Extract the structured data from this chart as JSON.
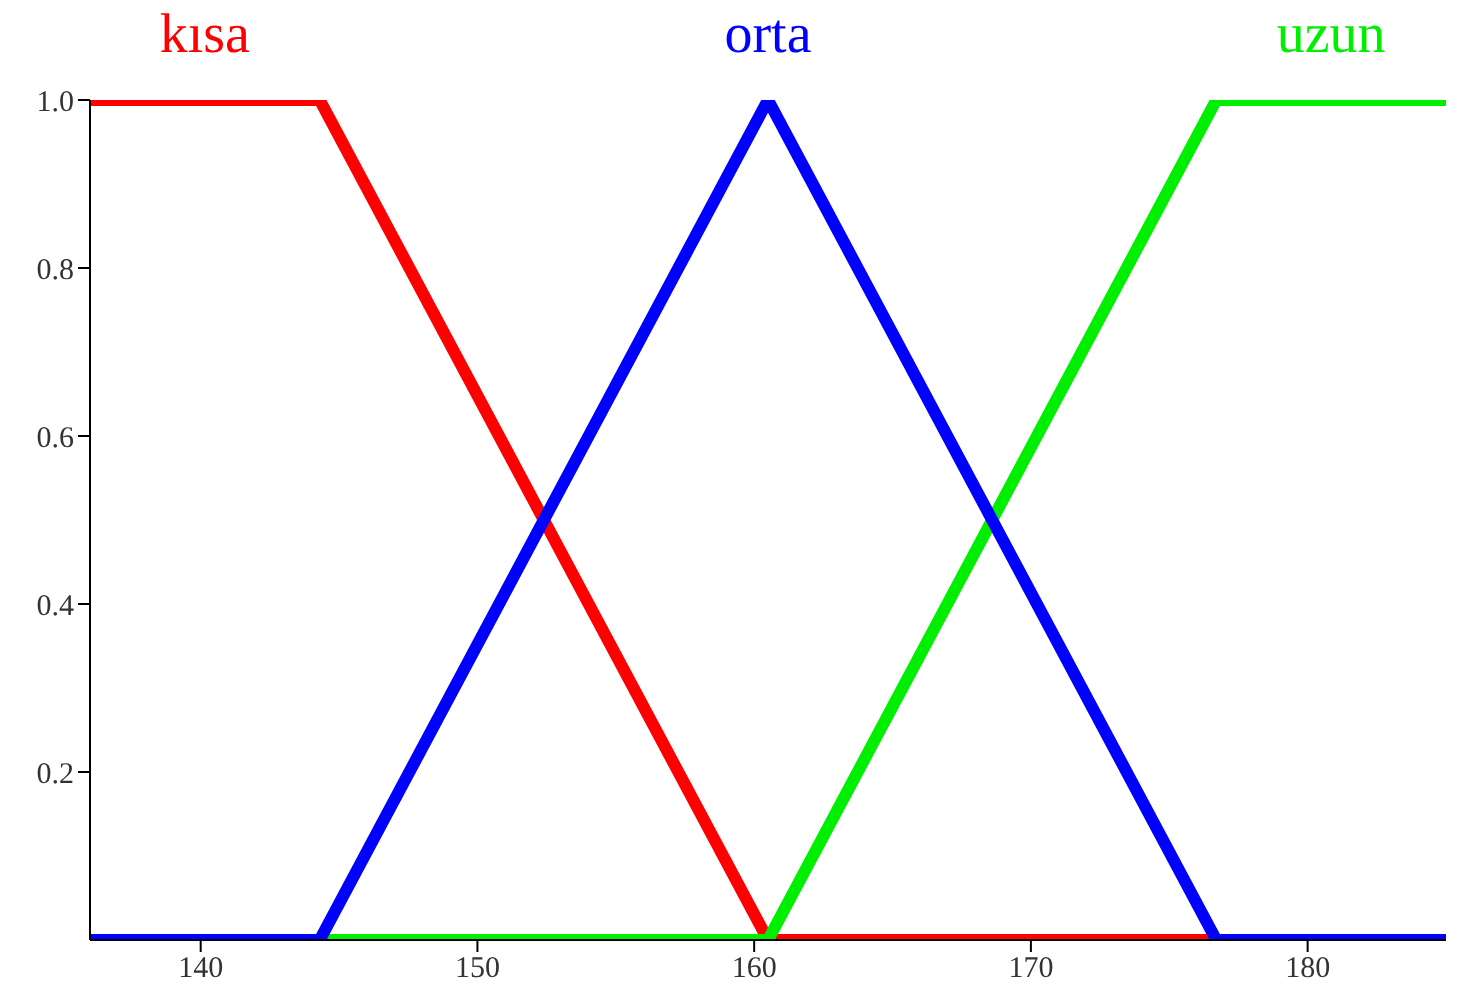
{
  "chart_data": {
    "type": "line",
    "legend": "top",
    "xlim": [
      136,
      185
    ],
    "xticks": [
      140,
      150,
      160,
      170,
      180
    ],
    "ylim": [
      0,
      1
    ],
    "yticks": [
      0.2,
      0.4,
      0.6,
      0.8,
      {
        "value": 1,
        "label": "1.0"
      }
    ],
    "grid": false,
    "marker": "none",
    "line_style": "solid",
    "series": [
      {
        "name": "kısa",
        "color": "#ff0000",
        "x": [
          136,
          144.3,
          160.5,
          185
        ],
        "values": [
          1,
          1,
          0,
          0
        ]
      },
      {
        "name": "uzun",
        "color": "#00ee00",
        "x": [
          136,
          160.5,
          176.7,
          185
        ],
        "values": [
          0,
          0,
          1,
          1
        ]
      },
      {
        "name": "orta",
        "color": "#0000ff",
        "x": [
          136,
          144.3,
          160.5,
          176.7,
          185
        ],
        "values": [
          0,
          0,
          1,
          0,
          0
        ]
      }
    ]
  }
}
